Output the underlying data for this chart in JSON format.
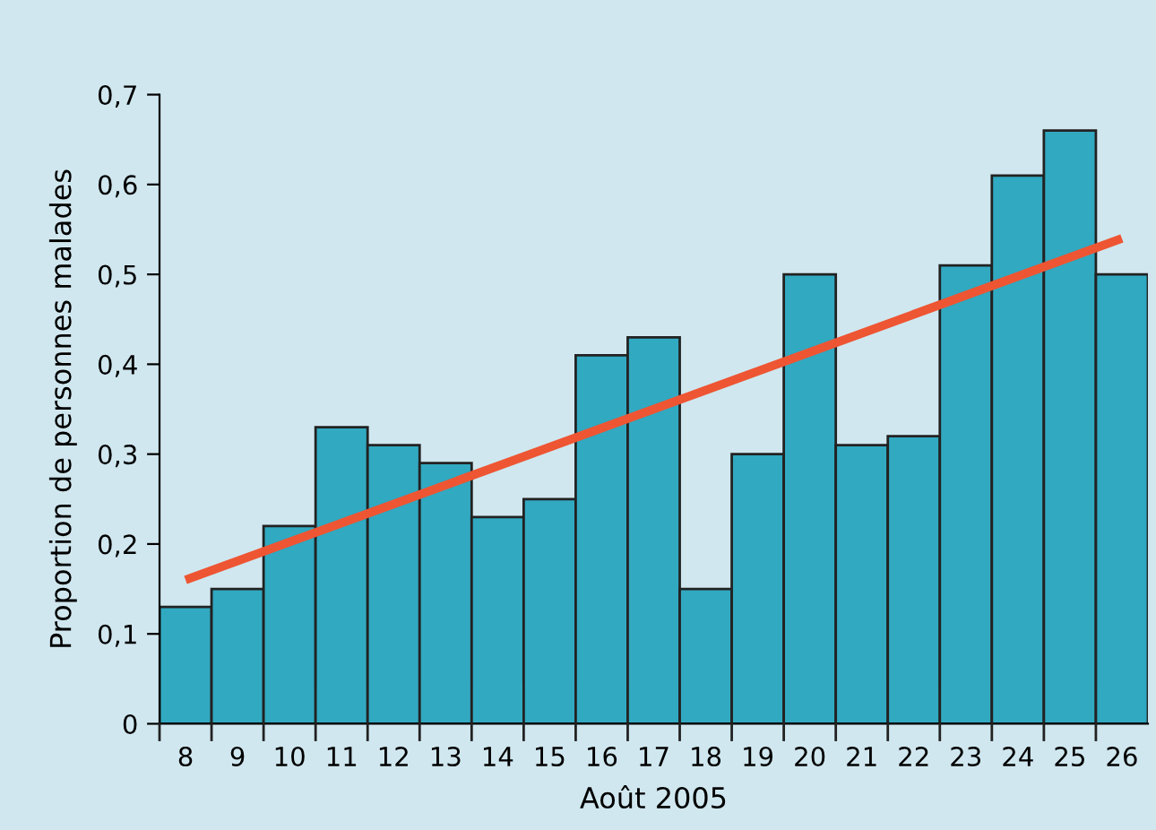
{
  "chart_data": {
    "type": "bar",
    "xlabel": "Août 2005",
    "ylabel": "Proportion de personnes malades",
    "categories": [
      "8",
      "9",
      "10",
      "11",
      "12",
      "13",
      "14",
      "15",
      "16",
      "17",
      "18",
      "19",
      "20",
      "21",
      "22",
      "23",
      "24",
      "25",
      "26"
    ],
    "series": [
      {
        "color": "#31a9c1",
        "values": [
          0.13,
          0.15,
          0.22,
          0.33,
          0.31,
          0.29,
          0.23,
          0.25,
          0.41,
          0.43,
          0.15,
          0.3,
          0.5,
          0.31,
          0.32,
          0.51,
          0.61,
          0.66,
          0.5
        ]
      },
      {
        "type": "line",
        "color": "#ee5533",
        "x": [
          "8",
          "26"
        ],
        "values": [
          0.16,
          0.54
        ]
      }
    ],
    "ylim": [
      0,
      0.7
    ],
    "yticks": [
      {
        "value": 0,
        "label": "0"
      },
      {
        "value": 0.1,
        "label": "0,1"
      },
      {
        "value": 0.2,
        "label": "0,2"
      },
      {
        "value": 0.3,
        "label": "0,3"
      },
      {
        "value": 0.4,
        "label": "0,4"
      },
      {
        "value": 0.5,
        "label": "0,5"
      },
      {
        "value": 0.6,
        "label": "0,6"
      },
      {
        "value": 0.7,
        "label": "0,7"
      }
    ],
    "grid": false,
    "legend": false
  }
}
